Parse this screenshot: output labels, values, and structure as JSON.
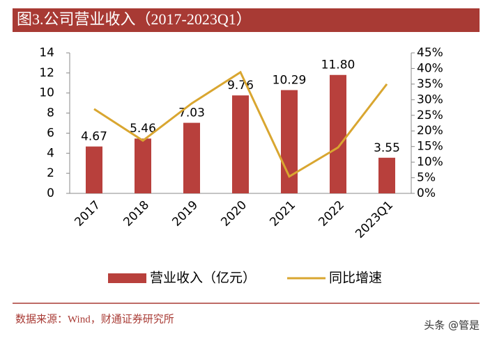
{
  "chart_data": {
    "type": "bar",
    "title": "图3.公司营业收入（2017-2023Q1）",
    "categories": [
      "2017",
      "2018",
      "2019",
      "2020",
      "2021",
      "2022",
      "2023Q1"
    ],
    "series": [
      {
        "name": "营业收入（亿元）",
        "type": "bar",
        "color": "#b8403c",
        "values": [
          4.67,
          5.46,
          7.03,
          9.76,
          10.29,
          11.8,
          3.55
        ],
        "value_labels": [
          "4.67",
          "5.46",
          "7.03",
          "9.76",
          "10.29",
          "11.80",
          "3.55"
        ]
      },
      {
        "name": "同比增速",
        "type": "line",
        "axis": "y2",
        "color": "#d9a630",
        "values": [
          27,
          16.9,
          28.8,
          38.8,
          5.4,
          14.7,
          35
        ]
      }
    ],
    "ylim": [
      0,
      14
    ],
    "yticks": [
      0,
      2,
      4,
      6,
      8,
      10,
      12,
      14
    ],
    "y2lim": [
      0,
      45
    ],
    "y2ticks": [
      {
        "value": 0,
        "label": "0%"
      },
      {
        "value": 5,
        "label": "5%"
      },
      {
        "value": 10,
        "label": "10%"
      },
      {
        "value": 15,
        "label": "15%"
      },
      {
        "value": 20,
        "label": "20%"
      },
      {
        "value": 25,
        "label": "25%"
      },
      {
        "value": 30,
        "label": "30%"
      },
      {
        "value": 35,
        "label": "35%"
      },
      {
        "value": 40,
        "label": "40%"
      },
      {
        "value": 45,
        "label": "45%"
      }
    ],
    "legend": "bottom",
    "grid": false
  },
  "source": "数据来源：Wind，财通证券研究所",
  "watermark": "头条 @管是"
}
